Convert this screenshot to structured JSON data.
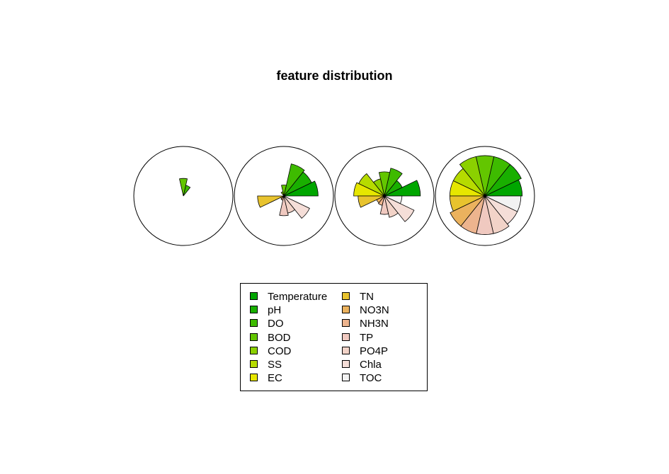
{
  "chart_data": {
    "type": "star",
    "title": "feature distribution",
    "features": [
      {
        "name": "Temperature",
        "color": "#00A600"
      },
      {
        "name": "pH",
        "color": "#19AF00"
      },
      {
        "name": "DO",
        "color": "#3EBB00"
      },
      {
        "name": "BOD",
        "color": "#63C600"
      },
      {
        "name": "COD",
        "color": "#8BD000"
      },
      {
        "name": "SS",
        "color": "#B6DB00"
      },
      {
        "name": "EC",
        "color": "#E6E600"
      },
      {
        "name": "TN",
        "color": "#E8C32E"
      },
      {
        "name": "NO3N",
        "color": "#EBB25E"
      },
      {
        "name": "NH3N",
        "color": "#EDB48E"
      },
      {
        "name": "TP",
        "color": "#F0C9C0"
      },
      {
        "name": "PO4P",
        "color": "#F2D3C8"
      },
      {
        "name": "Chla",
        "color": "#F5DED8"
      },
      {
        "name": "TOC",
        "color": "#F2F2F2"
      }
    ],
    "stars": [
      {
        "values": [
          0,
          0,
          0.25,
          0.4,
          0,
          0,
          0,
          0,
          0,
          0,
          0,
          0,
          0,
          0
        ]
      },
      {
        "values": [
          0.78,
          0.7,
          0.75,
          0.25,
          0.1,
          0,
          0,
          0.6,
          0.08,
          0.1,
          0.45,
          0.4,
          0.65,
          0
        ]
      },
      {
        "values": [
          0.82,
          0.45,
          0.65,
          0.55,
          0.4,
          0.65,
          0.7,
          0.6,
          0.2,
          0.22,
          0.42,
          0.5,
          0.75,
          0.4
        ]
      },
      {
        "values": [
          0.85,
          0.92,
          0.92,
          0.92,
          0.92,
          0.8,
          0.8,
          0.8,
          0.88,
          0.88,
          0.88,
          0.88,
          0.82,
          0.82
        ]
      }
    ],
    "legend_position": "bottom",
    "grid": false
  }
}
